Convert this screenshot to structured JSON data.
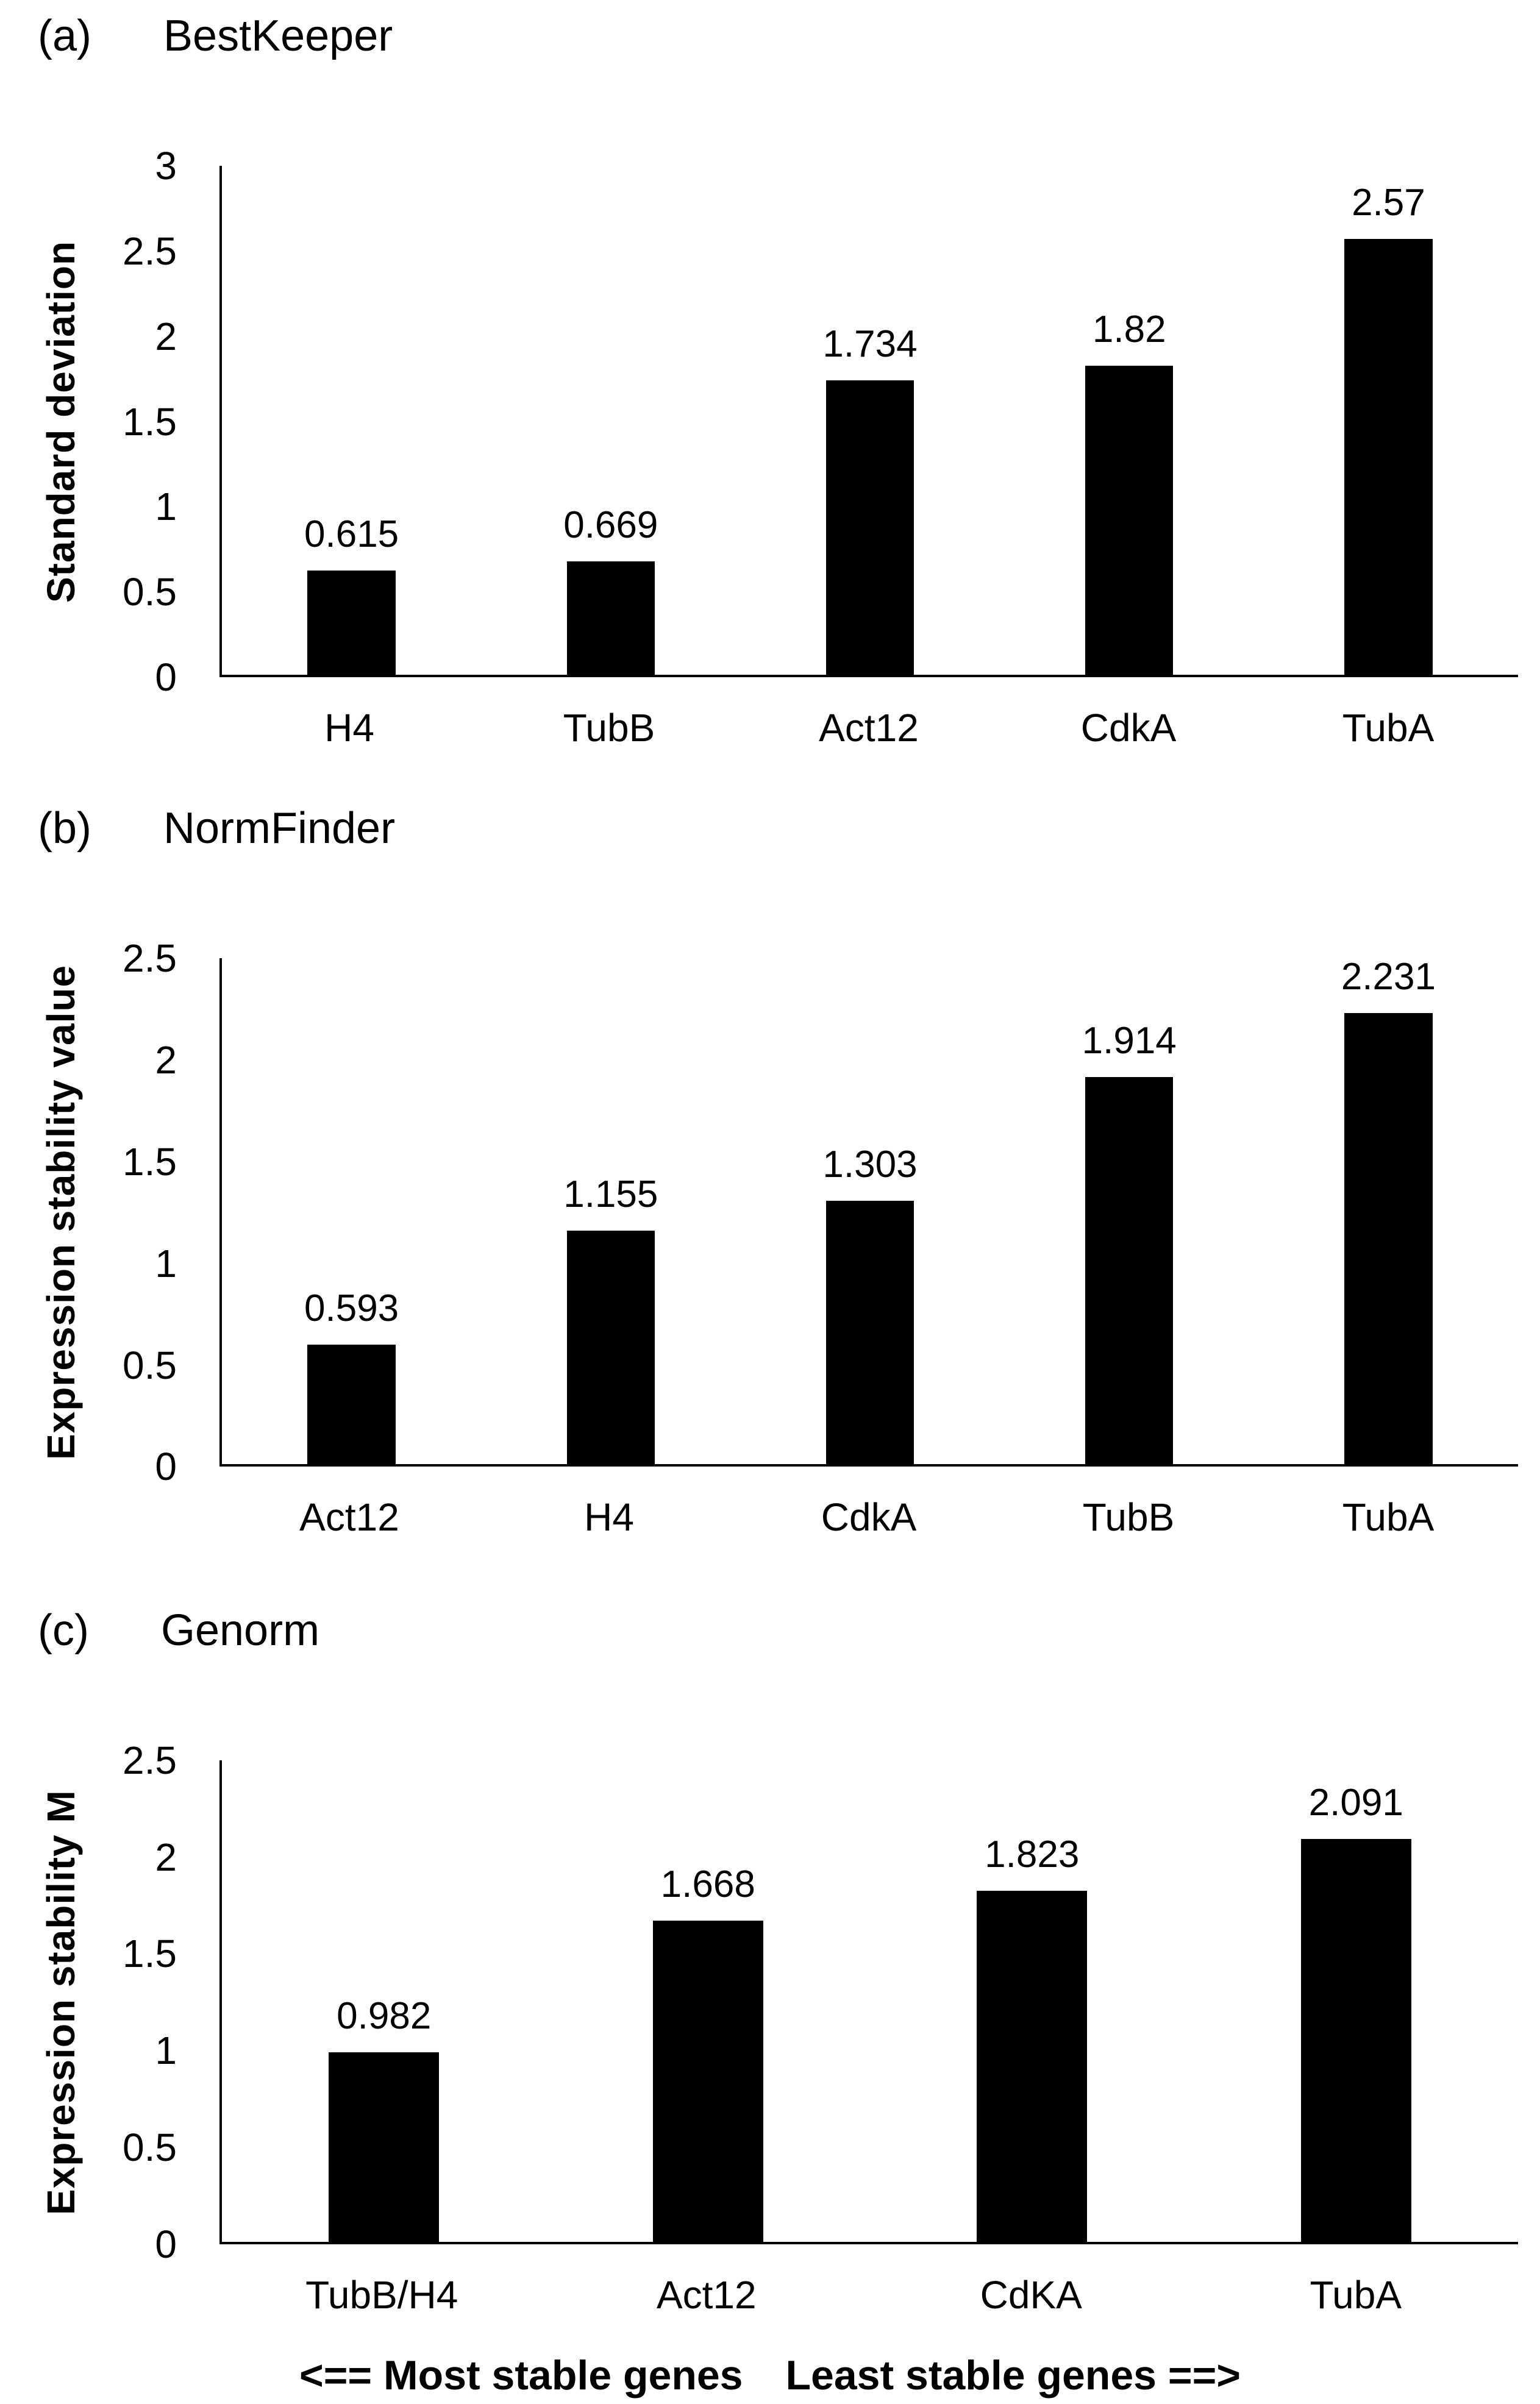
{
  "page": {
    "background_color": "#ffffff",
    "bar_color": "#000000",
    "axis_color": "#000000",
    "text_color": "#000000"
  },
  "footer": {
    "left_text": "<== Most stable genes",
    "right_text": "Least stable genes ==>"
  },
  "chart_data": [
    {
      "type": "bar",
      "panel_label": "(a)",
      "title": "BestKeeper",
      "ylabel": "Standard deviation",
      "xlabel": "",
      "categories": [
        "H4",
        "TubB",
        "Act12",
        "CdkA",
        "TubA"
      ],
      "values": [
        0.615,
        0.669,
        1.734,
        1.82,
        2.57
      ],
      "value_labels": [
        "0.615",
        "0.669",
        "1.734",
        "1.82",
        "2.57"
      ],
      "ylim": [
        0,
        3
      ],
      "yticks": [
        0,
        0.5,
        1,
        1.5,
        2,
        2.5,
        3
      ],
      "ytick_labels": [
        "0",
        "0.5",
        "1",
        "1.5",
        "2",
        "2.5",
        "3"
      ],
      "grid": false,
      "legend": null,
      "bar_color": "#000000"
    },
    {
      "type": "bar",
      "panel_label": "(b)",
      "title": "NormFinder",
      "ylabel": "Expression stability value",
      "xlabel": "",
      "categories": [
        "Act12",
        "H4",
        "CdkA",
        "TubB",
        "TubA"
      ],
      "values": [
        0.593,
        1.155,
        1.303,
        1.914,
        2.231
      ],
      "value_labels": [
        "0.593",
        "1.155",
        "1.303",
        "1.914",
        "2.231"
      ],
      "ylim": [
        0,
        2.5
      ],
      "yticks": [
        0,
        0.5,
        1,
        1.5,
        2,
        2.5
      ],
      "ytick_labels": [
        "0",
        "0.5",
        "1",
        "1.5",
        "2",
        "2.5"
      ],
      "grid": false,
      "legend": null,
      "bar_color": "#000000"
    },
    {
      "type": "bar",
      "panel_label": "(c)",
      "title": "Genorm",
      "ylabel": "Expression stability M",
      "xlabel": "",
      "categories": [
        "TubB/H4",
        "Act12",
        "CdKA",
        "TubA"
      ],
      "values": [
        0.982,
        1.668,
        1.823,
        2.091
      ],
      "value_labels": [
        "0.982",
        "1.668",
        "1.823",
        "2.091"
      ],
      "ylim": [
        0,
        2.5
      ],
      "yticks": [
        0,
        0.5,
        1,
        1.5,
        2,
        2.5
      ],
      "ytick_labels": [
        "0",
        "0.5",
        "1",
        "1.5",
        "2",
        "2.5"
      ],
      "grid": false,
      "legend": null,
      "bar_color": "#000000"
    }
  ]
}
